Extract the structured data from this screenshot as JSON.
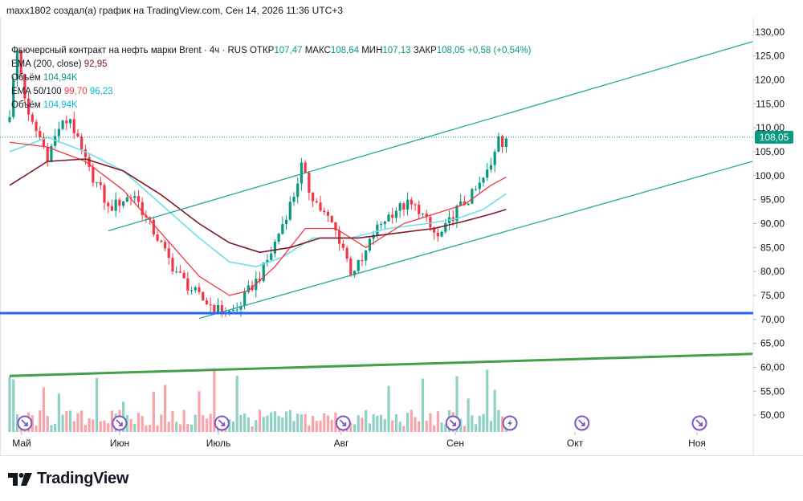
{
  "header": {
    "published_by": "maxx1802 создал(а) график на TradingView.com, Сен 14, 2026 11:36 UTC+3"
  },
  "legend": {
    "instrument": "Фьючерсный контракт на нефть марки Brent · 4ч · RUS",
    "open_label": "ОТКР",
    "open": "107,47",
    "high_label": "МАКС",
    "high": "108,64",
    "low_label": "МИН",
    "low": "107,13",
    "close_label": "ЗАКР",
    "close": "108,05",
    "change": "+0,58 (+0,54%)",
    "ema200_label": "EMA (200, close)",
    "ema200_value": "92,95",
    "volume_label": "Объём",
    "volume_value": "104,94K",
    "ema50_100_label": "EMA 50/100",
    "ema50_value": "99,70",
    "ema100_value": "96,23",
    "volume2_label": "Объём",
    "volume2_value": "104,94K"
  },
  "colors": {
    "up": "#089981",
    "down": "#f23645",
    "ema50": "#f23645",
    "ema100": "#6fe0e8",
    "ema200": "#801922",
    "channel": "#22ab94",
    "support": "#2962ff",
    "trend": "#43a047",
    "price_tag": "#089981",
    "event": "#7e57c2"
  },
  "logo": {
    "text": "TradingView",
    "icon": "tradingview-logo-icon"
  },
  "chart_data": {
    "type": "candlestick",
    "ylim": [
      46.5,
      133
    ],
    "y_ticks": [
      "130,00",
      "125,00",
      "120,00",
      "115,00",
      "110,00",
      "105,00",
      "100,00",
      "95,00",
      "90,00",
      "85,00",
      "80,00",
      "75,00",
      "70,00",
      "65,00",
      "60,00",
      "55,00",
      "50,00"
    ],
    "x_ticks": [
      "Май",
      "Июн",
      "Июль",
      "Авг",
      "Сен",
      "Окт",
      "Ноя"
    ],
    "last_price": "108,05",
    "price_path": [
      [
        0,
        113
      ],
      [
        2,
        126
      ],
      [
        5,
        112
      ],
      [
        8,
        108
      ],
      [
        10,
        104
      ],
      [
        13,
        110
      ],
      [
        16,
        112
      ],
      [
        18,
        107
      ],
      [
        21,
        101
      ],
      [
        24,
        97
      ],
      [
        26,
        93
      ],
      [
        30,
        95
      ],
      [
        33,
        96
      ],
      [
        36,
        91
      ],
      [
        39,
        87
      ],
      [
        43,
        81
      ],
      [
        47,
        77
      ],
      [
        51,
        74
      ],
      [
        55,
        72
      ],
      [
        58,
        71.5
      ],
      [
        60,
        72
      ],
      [
        63,
        76
      ],
      [
        66,
        79
      ],
      [
        69,
        84
      ],
      [
        72,
        90
      ],
      [
        75,
        96
      ],
      [
        77,
        102
      ],
      [
        79,
        97
      ],
      [
        82,
        93
      ],
      [
        85,
        90
      ],
      [
        88,
        85
      ],
      [
        90,
        80
      ],
      [
        93,
        82
      ],
      [
        96,
        88
      ],
      [
        99,
        91
      ],
      [
        102,
        93
      ],
      [
        105,
        94
      ],
      [
        108,
        93
      ],
      [
        111,
        89
      ],
      [
        113,
        87
      ],
      [
        115,
        89
      ],
      [
        118,
        93
      ],
      [
        121,
        95
      ],
      [
        124,
        98
      ],
      [
        127,
        102
      ],
      [
        129,
        109
      ],
      [
        130,
        107
      ],
      [
        131,
        108.05
      ]
    ],
    "ema50": [
      [
        0,
        107
      ],
      [
        10,
        106
      ],
      [
        20,
        103
      ],
      [
        30,
        97
      ],
      [
        40,
        88
      ],
      [
        50,
        79
      ],
      [
        58,
        75
      ],
      [
        63,
        76
      ],
      [
        70,
        81
      ],
      [
        78,
        89
      ],
      [
        86,
        89
      ],
      [
        94,
        85
      ],
      [
        104,
        90
      ],
      [
        112,
        92
      ],
      [
        120,
        94
      ],
      [
        127,
        98
      ],
      [
        131,
        99.7
      ]
    ],
    "ema100": [
      [
        0,
        105
      ],
      [
        10,
        108
      ],
      [
        20,
        105
      ],
      [
        30,
        101
      ],
      [
        40,
        94
      ],
      [
        50,
        87
      ],
      [
        58,
        82
      ],
      [
        65,
        81
      ],
      [
        72,
        83
      ],
      [
        80,
        87
      ],
      [
        90,
        87
      ],
      [
        100,
        89
      ],
      [
        110,
        90
      ],
      [
        118,
        91
      ],
      [
        125,
        93
      ],
      [
        131,
        96.23
      ]
    ],
    "ema200": [
      [
        0,
        98
      ],
      [
        10,
        103
      ],
      [
        20,
        103.5
      ],
      [
        30,
        101
      ],
      [
        40,
        96
      ],
      [
        50,
        90
      ],
      [
        58,
        86
      ],
      [
        66,
        84
      ],
      [
        74,
        85
      ],
      [
        82,
        87
      ],
      [
        92,
        87
      ],
      [
        102,
        88
      ],
      [
        112,
        89
      ],
      [
        120,
        90.5
      ],
      [
        127,
        92
      ],
      [
        131,
        92.95
      ]
    ],
    "channel_upper": [
      [
        26,
        88.5
      ],
      [
        196,
        128
      ]
    ],
    "channel_lower": [
      [
        50,
        70.2
      ],
      [
        196,
        103
      ]
    ],
    "support": {
      "y": 71.3
    },
    "trend": [
      [
        0,
        58.2
      ],
      [
        196,
        62.8
      ]
    ],
    "event_markers": [
      {
        "x": 4,
        "type": "calendar"
      },
      {
        "x": 29,
        "type": "calendar"
      },
      {
        "x": 56,
        "type": "calendar"
      },
      {
        "x": 88,
        "type": "calendar"
      },
      {
        "x": 117,
        "type": "calendar"
      },
      {
        "x": 132,
        "type": "earnings"
      },
      {
        "x": 151,
        "type": "calendar"
      },
      {
        "x": 182,
        "type": "calendar"
      }
    ]
  }
}
